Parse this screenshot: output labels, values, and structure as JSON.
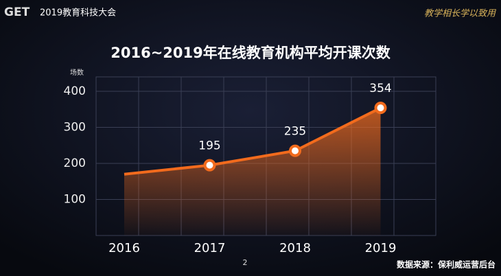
{
  "header": {
    "logo": "GET",
    "event": "2019教育科技大会",
    "motto": "教学相长学以致用"
  },
  "chart_data": {
    "type": "line",
    "title": "2016~2019年在线教育机构平均开课次数",
    "y_label": "场数",
    "categories": [
      "2016",
      "2017",
      "2018",
      "2019"
    ],
    "values": [
      170,
      195,
      235,
      354
    ],
    "value_labels": [
      null,
      "195",
      "235",
      "354"
    ],
    "color": "#f26b1d",
    "ylim": [
      0,
      440
    ],
    "yticks": [
      100,
      200,
      300,
      400
    ],
    "grid": true
  },
  "footer": {
    "page": "2",
    "source": "数据来源：保利威运营后台"
  }
}
